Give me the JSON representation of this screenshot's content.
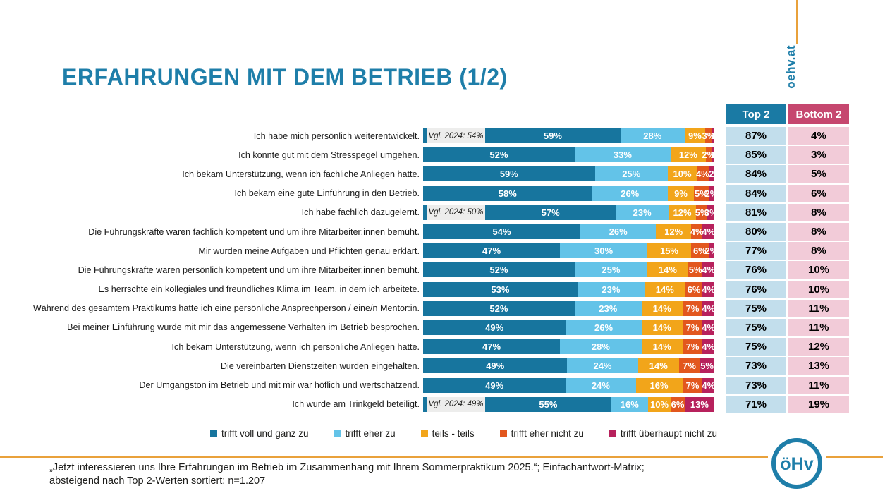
{
  "page": {
    "title": "ERFAHRUNGEN MIT DEM BETRIEB (1/2)"
  },
  "branding": {
    "site": "oehv.at",
    "logo_text": "öHv",
    "brand_blue": "#1E7EA9",
    "accent_orange": "#E9A13B"
  },
  "table": {
    "top2_header": "Top 2",
    "bottom2_header": "Bottom 2",
    "top2_header_bg": "#1A7AA4",
    "bottom2_header_bg": "#C6476F",
    "top2_cell_bg": "#C2DEEC",
    "bottom2_cell_bg": "#F2CBD8"
  },
  "chart_data": {
    "type": "bar",
    "subtype": "horizontal-stacked",
    "unit": "%",
    "xlim": [
      0,
      100
    ],
    "legend_position": "bottom",
    "series_names": [
      "trifft voll und ganz zu",
      "trifft eher zu",
      "teils - teils",
      "trifft eher nicht zu",
      "trifft überhaupt nicht zu"
    ],
    "series_colors": [
      "#17759E",
      "#63C3E8",
      "#F2A51A",
      "#E2571E",
      "#B7215C"
    ],
    "comparison_box_bg": "#EDEDEC",
    "rows": [
      {
        "label": "Ich habe mich persönlich weiterentwickelt.",
        "comparison": "Vgl. 2024: 54%",
        "values": [
          59,
          28,
          9,
          3,
          1
        ],
        "value_labels": [
          "59%",
          "28%",
          "9%",
          "3%",
          "1"
        ],
        "top2": "87%",
        "bottom2": "4%"
      },
      {
        "label": "Ich konnte gut mit dem Stresspegel umgehen.",
        "comparison": null,
        "values": [
          52,
          33,
          12,
          2,
          1
        ],
        "value_labels": [
          "52%",
          "33%",
          "12%",
          "2%",
          "1"
        ],
        "top2": "85%",
        "bottom2": "3%"
      },
      {
        "label": "Ich bekam Unterstützung, wenn ich fachliche Anliegen hatte.",
        "comparison": null,
        "values": [
          59,
          25,
          10,
          4,
          2
        ],
        "value_labels": [
          "59%",
          "25%",
          "10%",
          "4%",
          "2"
        ],
        "top2": "84%",
        "bottom2": "5%"
      },
      {
        "label": "Ich bekam eine gute Einführung in den Betrieb.",
        "comparison": null,
        "values": [
          58,
          26,
          9,
          5,
          2
        ],
        "value_labels": [
          "58%",
          "26%",
          "9%",
          "5%",
          "2%"
        ],
        "top2": "84%",
        "bottom2": "6%"
      },
      {
        "label": "Ich habe fachlich dazugelernt.",
        "comparison": "Vgl. 2024: 50%",
        "values": [
          57,
          23,
          12,
          5,
          3
        ],
        "value_labels": [
          "57%",
          "23%",
          "12%",
          "5%",
          "3%"
        ],
        "top2": "81%",
        "bottom2": "8%"
      },
      {
        "label": "Die Führungskräfte waren fachlich kompetent und um ihre Mitarbeiter:innen bemüht.",
        "comparison": null,
        "values": [
          54,
          26,
          12,
          4,
          4
        ],
        "value_labels": [
          "54%",
          "26%",
          "12%",
          "4%",
          "4%"
        ],
        "top2": "80%",
        "bottom2": "8%"
      },
      {
        "label": "Mir wurden meine Aufgaben und Pflichten genau erklärt.",
        "comparison": null,
        "values": [
          47,
          30,
          15,
          6,
          2
        ],
        "value_labels": [
          "47%",
          "30%",
          "15%",
          "6%",
          "2%"
        ],
        "top2": "77%",
        "bottom2": "8%"
      },
      {
        "label": "Die Führungskräfte waren persönlich kompetent und um ihre Mitarbeiter:innen bemüht.",
        "comparison": null,
        "values": [
          52,
          25,
          14,
          5,
          4
        ],
        "value_labels": [
          "52%",
          "25%",
          "14%",
          "5%",
          "4%"
        ],
        "top2": "76%",
        "bottom2": "10%"
      },
      {
        "label": "Es herrschte ein kollegiales und freundliches Klima im Team, in dem ich arbeitete.",
        "comparison": null,
        "values": [
          53,
          23,
          14,
          6,
          4
        ],
        "value_labels": [
          "53%",
          "23%",
          "14%",
          "6%",
          "4%"
        ],
        "top2": "76%",
        "bottom2": "10%"
      },
      {
        "label": "Während des gesamtem Praktikums hatte ich eine persönliche Ansprechperson / eine/n Mentor:in.",
        "comparison": null,
        "values": [
          52,
          23,
          14,
          7,
          4
        ],
        "value_labels": [
          "52%",
          "23%",
          "14%",
          "7%",
          "4%"
        ],
        "top2": "75%",
        "bottom2": "11%"
      },
      {
        "label": "Bei meiner Einführung wurde mit mir das angemessene Verhalten im Betrieb besprochen.",
        "comparison": null,
        "values": [
          49,
          26,
          14,
          7,
          4
        ],
        "value_labels": [
          "49%",
          "26%",
          "14%",
          "7%",
          "4%"
        ],
        "top2": "75%",
        "bottom2": "11%"
      },
      {
        "label": "Ich bekam Unterstützung, wenn ich persönliche Anliegen hatte.",
        "comparison": null,
        "values": [
          47,
          28,
          14,
          7,
          4
        ],
        "value_labels": [
          "47%",
          "28%",
          "14%",
          "7%",
          "4%"
        ],
        "top2": "75%",
        "bottom2": "12%"
      },
      {
        "label": "Die vereinbarten Dienstzeiten wurden eingehalten.",
        "comparison": null,
        "values": [
          49,
          24,
          14,
          7,
          5
        ],
        "value_labels": [
          "49%",
          "24%",
          "14%",
          "7%",
          "5%"
        ],
        "top2": "73%",
        "bottom2": "13%"
      },
      {
        "label": "Der Umgangston im Betrieb und mit mir war höflich und wertschätzend.",
        "comparison": null,
        "values": [
          49,
          24,
          16,
          7,
          4
        ],
        "value_labels": [
          "49%",
          "24%",
          "16%",
          "7%",
          "4%"
        ],
        "top2": "73%",
        "bottom2": "11%"
      },
      {
        "label": "Ich wurde am Trinkgeld beteiligt.",
        "comparison": "Vgl. 2024: 49%",
        "values": [
          55,
          16,
          10,
          6,
          13
        ],
        "value_labels": [
          "55%",
          "16%",
          "10%",
          "6%",
          "13%"
        ],
        "top2": "71%",
        "bottom2": "19%"
      }
    ]
  },
  "footer": {
    "line1": "„Jetzt interessieren uns Ihre Erfahrungen im Betrieb im Zusammenhang mit Ihrem Sommerpraktikum 2025.“; Einfachantwort-Matrix;",
    "line2": "absteigend nach Top 2-Werten sortiert; n=1.207"
  }
}
